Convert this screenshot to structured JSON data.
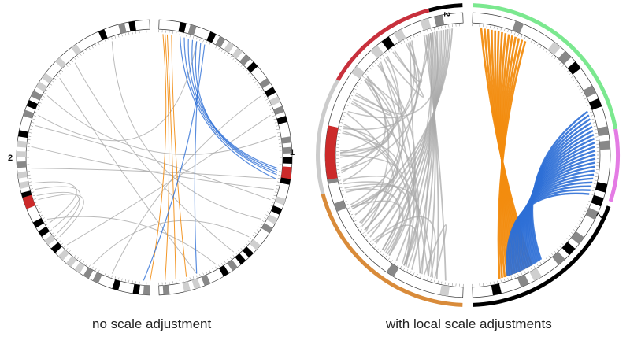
{
  "left_panel": {
    "caption": "no scale adjustment",
    "chr_label_a": "1",
    "chr_label_b": "2"
  },
  "right_panel": {
    "caption": "with local scale adjustments",
    "chr_label_a": "2",
    "chr_label_b": "7"
  },
  "colors": {
    "link_gray": "#a9a9a9",
    "link_orange": "#f28c0f",
    "link_blue": "#2e6fd6",
    "band_dark": "#000000",
    "band_mid": "#888888",
    "band_light": "#cfcfcf",
    "centromere": "#cc2a2a",
    "outer_red": "#c8303c",
    "outer_orange": "#d98b3a",
    "outer_green": "#7be88f",
    "outer_magenta": "#e47be4",
    "outer_black": "#000000"
  }
}
